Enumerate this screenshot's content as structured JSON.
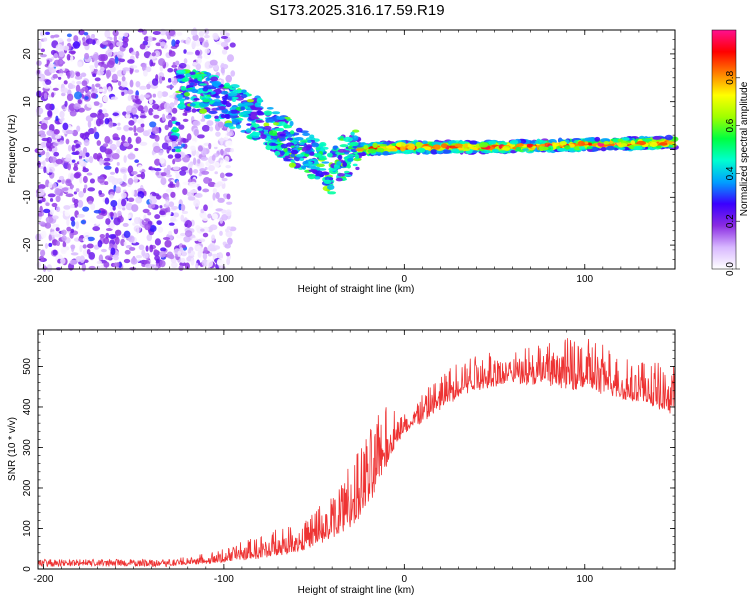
{
  "chart_data": [
    {
      "type": "heatmap",
      "title": "S173.2025.316.17.59.R19",
      "xlabel": "Height of straight line (km)",
      "ylabel": "Frequency (Hz)",
      "xlim": [
        -203,
        150
      ],
      "ylim": [
        -25,
        25
      ],
      "xticks": [
        -200,
        -100,
        0,
        100
      ],
      "yticks": [
        -20,
        -10,
        0,
        10,
        20
      ],
      "colorbar": {
        "label": "Normalized spectral amplitude",
        "range": [
          0,
          1
        ],
        "ticks": [
          0.0,
          0.2,
          0.4,
          0.6,
          0.8
        ],
        "colors": [
          "#ffffff",
          "#d8b8ff",
          "#8a2be2",
          "#3a00ff",
          "#00a0ff",
          "#00ffd0",
          "#00ff40",
          "#a0ff00",
          "#ffff00",
          "#ff8000",
          "#ff0000",
          "#ff1090"
        ]
      },
      "features": {
        "noise_region_km": [
          -203,
          -120
        ],
        "ridge": [
          {
            "x": -125,
            "f": 13.5
          },
          {
            "x": -110,
            "f": 11.5
          },
          {
            "x": -95,
            "f": 9
          },
          {
            "x": -80,
            "f": 6
          },
          {
            "x": -65,
            "f": 2
          },
          {
            "x": -50,
            "f": -2
          },
          {
            "x": -40,
            "f": -5
          },
          {
            "x": -35,
            "f": -2
          },
          {
            "x": -25,
            "f": 0
          },
          {
            "x": 0,
            "f": 0.5
          },
          {
            "x": 50,
            "f": 0.5
          },
          {
            "x": 100,
            "f": 1
          },
          {
            "x": 150,
            "f": 1.5
          }
        ]
      }
    },
    {
      "type": "line",
      "xlabel": "Height of straight line (km)",
      "ylabel": "SNR (10 * v/v)",
      "xlim": [
        -203,
        150
      ],
      "ylim": [
        0,
        590
      ],
      "xticks": [
        -200,
        -100,
        0,
        100
      ],
      "yticks": [
        0,
        100,
        200,
        300,
        400,
        500
      ],
      "color": "#ee3333",
      "envelope": {
        "x": [
          -203,
          -150,
          -125,
          -110,
          -100,
          -80,
          -60,
          -50,
          -40,
          -30,
          -20,
          -10,
          -5,
          0,
          10,
          20,
          30,
          40,
          60,
          80,
          100,
          120,
          150
        ],
        "base": [
          8,
          8,
          10,
          12,
          16,
          25,
          40,
          55,
          70,
          100,
          150,
          250,
          300,
          330,
          360,
          390,
          420,
          440,
          460,
          450,
          440,
          420,
          380
        ],
        "peak": [
          25,
          25,
          28,
          38,
          50,
          85,
          115,
          145,
          190,
          260,
          340,
          430,
          390,
          390,
          440,
          480,
          520,
          540,
          540,
          560,
          580,
          530,
          500
        ]
      }
    }
  ]
}
